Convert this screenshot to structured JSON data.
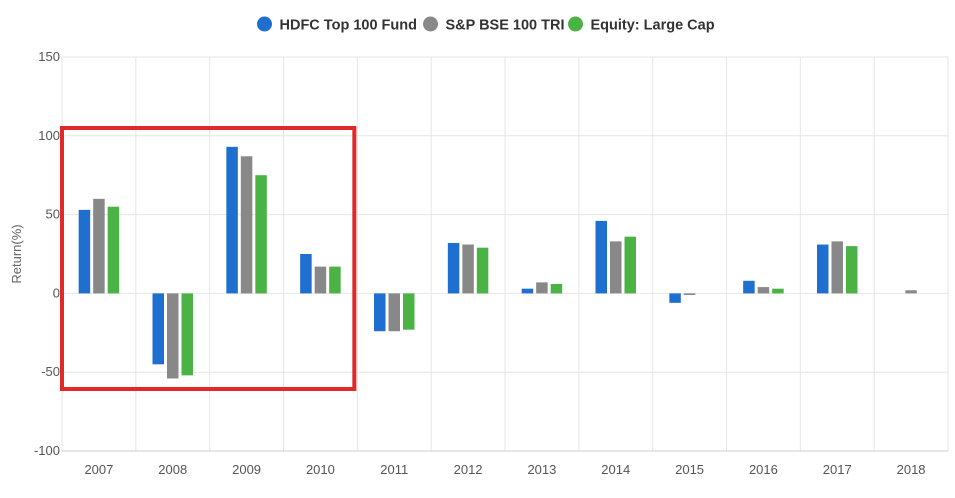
{
  "chart_data": {
    "type": "bar",
    "categories": [
      "2007",
      "2008",
      "2009",
      "2010",
      "2011",
      "2012",
      "2013",
      "2014",
      "2015",
      "2016",
      "2017",
      "2018"
    ],
    "series": [
      {
        "name": "HDFC Top 100 Fund",
        "color": "#1f6fd1",
        "values": [
          53,
          -45,
          93,
          25,
          -24,
          32,
          3,
          46,
          -6,
          8,
          31,
          0
        ]
      },
      {
        "name": "S&P BSE 100 TRI",
        "color": "#888888",
        "values": [
          60,
          -54,
          87,
          17,
          -24,
          31,
          7,
          33,
          -1,
          4,
          33,
          2
        ]
      },
      {
        "name": "Equity: Large Cap",
        "color": "#4bb345",
        "values": [
          55,
          -52,
          75,
          17,
          -23,
          29,
          6,
          36,
          0,
          3,
          30,
          0
        ]
      }
    ],
    "title": "",
    "xlabel": "",
    "ylabel": "Return(%)",
    "ylim": [
      -100,
      150
    ],
    "yticks": [
      "150",
      "100",
      "50",
      "0",
      "-50",
      "-100"
    ],
    "grid": true,
    "legend_position": "top-center",
    "highlight": {
      "categories": [
        "2007",
        "2008",
        "2009",
        "2010"
      ],
      "color": "#e02a2a"
    }
  }
}
